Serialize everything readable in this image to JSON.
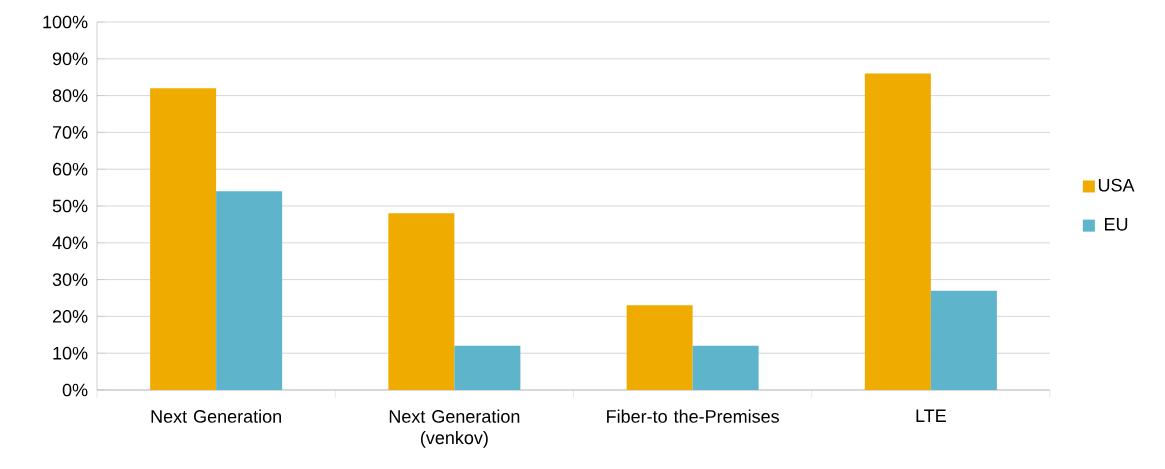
{
  "chart_data": {
    "type": "bar",
    "categories": [
      "Next Generation",
      "Next Generation (venkov)",
      "Fiber-to the-Premises",
      "LTE"
    ],
    "series": [
      {
        "name": "USA",
        "color": "#f0ab00",
        "values": [
          82,
          48,
          23,
          86
        ]
      },
      {
        "name": "EU",
        "color": "#5db4cb",
        "values": [
          54,
          12,
          12,
          27
        ]
      }
    ],
    "ylim": [
      0,
      100
    ],
    "yticks": [
      {
        "value": 0,
        "label": "0%"
      },
      {
        "value": 10,
        "label": "10%"
      },
      {
        "value": 20,
        "label": "20%"
      },
      {
        "value": 30,
        "label": "30%"
      },
      {
        "value": 40,
        "label": "40%"
      },
      {
        "value": 50,
        "label": "50%"
      },
      {
        "value": 60,
        "label": "60%"
      },
      {
        "value": 70,
        "label": "70%"
      },
      {
        "value": 80,
        "label": "80%"
      },
      {
        "value": 90,
        "label": "90%"
      },
      {
        "value": 100,
        "label": "100%"
      }
    ],
    "grid": "y",
    "legend": "right"
  }
}
